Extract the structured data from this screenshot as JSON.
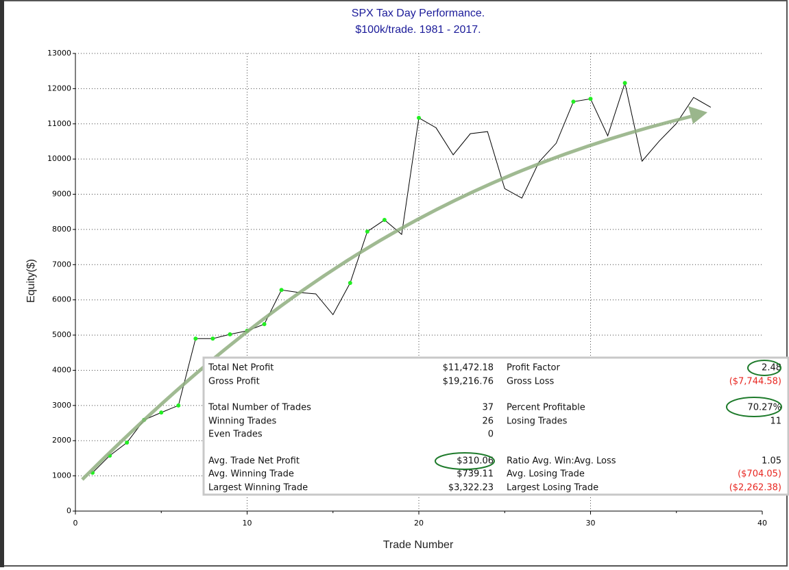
{
  "chart_data": {
    "type": "line",
    "title": "SPX Tax Day Performance.",
    "subtitle": "$100k/trade. 1981 - 2017.",
    "x_label": "Trade Number",
    "y_label": "Equity($)",
    "x": [
      1,
      2,
      3,
      4,
      5,
      6,
      7,
      8,
      9,
      10,
      11,
      12,
      13,
      14,
      15,
      16,
      17,
      18,
      19,
      20,
      21,
      22,
      23,
      24,
      25,
      26,
      27,
      28,
      29,
      30,
      31,
      32,
      33,
      34,
      35,
      36,
      37
    ],
    "series": [
      {
        "name": "Equity",
        "color": "#000000",
        "marker_color": "#22ee22",
        "values": [
          1090,
          1575,
          1945,
          2590,
          2800,
          3000,
          4900,
          4900,
          5020,
          5120,
          5310,
          6280,
          6210,
          6170,
          5580,
          6480,
          7940,
          8270,
          7860,
          11170,
          10890,
          10120,
          10720,
          10780,
          9160,
          8890,
          9920,
          10450,
          11630,
          11710,
          10660,
          12160,
          9940,
          10510,
          11010,
          11750,
          11472
        ]
      }
    ],
    "xlim": [
      0,
      40
    ],
    "xticks": [
      0,
      10,
      20,
      30,
      40
    ],
    "xminor": [
      5,
      15,
      25,
      35
    ],
    "ylim": [
      0,
      13000
    ],
    "yticks": [
      0,
      1000,
      2000,
      3000,
      4000,
      5000,
      6000,
      7000,
      8000,
      9000,
      10000,
      11000,
      12000,
      13000
    ],
    "grid": true
  },
  "stats_table": {
    "rows": [
      [
        [
          "Total Net Profit",
          "$11,472.18"
        ],
        [
          "Profit Factor",
          "2.48"
        ]
      ],
      [
        [
          "Gross Profit",
          "$19,216.76"
        ],
        [
          "Gross Loss",
          "($7,744.58)"
        ]
      ],
      [
        [
          "Total Number of Trades",
          "37"
        ],
        [
          "Percent Profitable",
          "70.27%"
        ]
      ],
      [
        [
          "Winning Trades",
          "26"
        ],
        [
          "Losing Trades",
          "11"
        ]
      ],
      [
        [
          "Even Trades",
          "0"
        ]
      ],
      [
        [
          "Avg. Trade Net Profit",
          "$310.06"
        ],
        [
          "Ratio Avg. Win:Avg. Loss",
          "1.05"
        ]
      ],
      [
        [
          "Avg. Winning Trade",
          "$739.11"
        ],
        [
          "Avg. Losing Trade",
          "($704.05)"
        ]
      ],
      [
        [
          "Largest Winning Trade",
          "$3,322.23"
        ],
        [
          "Largest Losing Trade",
          "($2,262.38)"
        ]
      ]
    ]
  }
}
